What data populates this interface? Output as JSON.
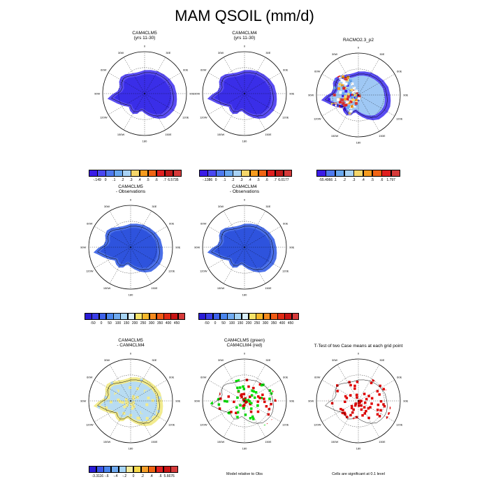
{
  "figure_title": "MAM QSOIL (mm/d)",
  "panels": [
    {
      "id": "p1",
      "title_lines": [
        "CAM4CLM5",
        "(yrs 11-30)"
      ],
      "fill": "#3a2ee8",
      "edge": "#5a4df2",
      "pattern": "uniform"
    },
    {
      "id": "p2",
      "title_lines": [
        "CAM4CLM4",
        "(yrs 11-30)"
      ],
      "fill": "#3a2ee8",
      "edge": "#5a4df2",
      "pattern": "uniform"
    },
    {
      "id": "p3",
      "title_lines": [
        "RACMO2.3_p2"
      ],
      "fill": "#9fc8f4",
      "edge": "#5a4df2",
      "pattern": "racmo"
    },
    {
      "id": "p4",
      "title_lines": [
        "CAM4CLM5",
        "- Observations"
      ],
      "fill": "#2e53dd",
      "edge": "#4b70e8",
      "pattern": "uniform"
    },
    {
      "id": "p5",
      "title_lines": [
        "CAM4CLM4",
        "- Observations"
      ],
      "fill": "#2e53dd",
      "edge": "#4b70e8",
      "pattern": "uniform"
    },
    {
      "id": "p6",
      "title_lines": [
        "CAM4CLM5",
        "- CAM4CLM4"
      ],
      "fill": "#b8dcf2",
      "edge": "#f2eb8e",
      "pattern": "diff"
    },
    {
      "id": "p7",
      "title_lines": [
        "CAM4CLM5 (green)",
        "CAM4CLM4 (red)"
      ],
      "fill": "none",
      "edge": "none",
      "pattern": "greenred"
    },
    {
      "id": "p8",
      "title_lines": [
        "T-Test of two Case means at each grid point"
      ],
      "fill": "none",
      "edge": "none",
      "pattern": "ttest"
    }
  ],
  "lon_labels": [
    "0",
    "30E",
    "60E",
    "90E",
    "120E",
    "150E",
    "180",
    "150W",
    "120W",
    "90W",
    "60W",
    "30W"
  ],
  "colorbars": [
    {
      "id": "cb1",
      "colors": [
        "#3b1ce8",
        "#4a48f2",
        "#4e7af0",
        "#6aa9f0",
        "#a9d3f5",
        "#f5d66a",
        "#f59b1e",
        "#f06414",
        "#e02020",
        "#c01a1a",
        "#d63a3a"
      ],
      "labels": [
        "-.149",
        "0",
        ".1",
        ".2",
        ".3",
        ".4",
        ".5",
        ".6",
        ".7",
        "6.5735"
      ]
    },
    {
      "id": "cb2",
      "colors": [
        "#3b1ce8",
        "#4a48f2",
        "#4e7af0",
        "#6aa9f0",
        "#a9d3f5",
        "#f5d66a",
        "#f59b1e",
        "#f06414",
        "#e02020",
        "#c01a1a",
        "#d63a3a"
      ],
      "labels": [
        "-.1386",
        "0",
        ".1",
        ".2",
        ".3",
        ".4",
        ".5",
        ".6",
        ".7",
        "6.0177"
      ]
    },
    {
      "id": "cb3",
      "colors": [
        "#3b1ce8",
        "#4e7af0",
        "#6aa9f0",
        "#a9d3f5",
        "#f5d66a",
        "#f59b1e",
        "#f06414",
        "#e02020",
        "#d63a3a"
      ],
      "labels": [
        "-55.4966",
        ".1",
        ".2",
        ".3",
        ".4",
        ".5",
        ".6",
        "1.797"
      ]
    },
    {
      "id": "cb4",
      "colors": [
        "#2a1cd6",
        "#3a3ee8",
        "#3e62ea",
        "#4a86ee",
        "#6faaf0",
        "#a6d4f4",
        "#d8eef8",
        "#f5e46a",
        "#f5b82a",
        "#f58a1e",
        "#f05a14",
        "#e02a14",
        "#c81414",
        "#d63a3a"
      ],
      "labels": [
        "-50",
        "0",
        "50",
        "100",
        "150",
        "200",
        "250",
        "300",
        "350",
        "400",
        "450"
      ]
    },
    {
      "id": "cb5",
      "colors": [
        "#2a1cd6",
        "#3a3ee8",
        "#3e62ea",
        "#4a86ee",
        "#6faaf0",
        "#a6d4f4",
        "#d8eef8",
        "#f5e46a",
        "#f5b82a",
        "#f58a1e",
        "#f05a14",
        "#e02a14",
        "#c81414",
        "#d63a3a"
      ],
      "labels": [
        "-50",
        "0",
        "50",
        "100",
        "150",
        "200",
        "250",
        "300",
        "350",
        "400",
        "450"
      ]
    },
    {
      "id": "cb6",
      "colors": [
        "#2a1cd6",
        "#3a56e8",
        "#4a86ee",
        "#6faaf0",
        "#a6d4f4",
        "#f5ec9e",
        "#f5d84a",
        "#f5a02a",
        "#f06414",
        "#e02020",
        "#c81414",
        "#d63a3a"
      ],
      "labels": [
        "-3.3116",
        "-.6",
        "-.4",
        "-.2",
        "0",
        ".2",
        ".4",
        ".6",
        "5.6676"
      ]
    }
  ],
  "footnotes": {
    "p7": "Model relative to Obs",
    "p8": "Cells are significant at 0.1 level"
  }
}
